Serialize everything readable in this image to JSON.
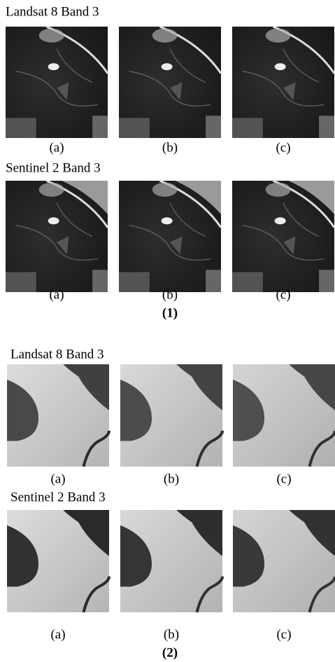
{
  "figure": {
    "sections": [
      {
        "label": "(1)",
        "groups": [
          {
            "title": "Landsat 8 Band 3",
            "captions": [
              "(a)",
              "(b)",
              "(c)"
            ]
          },
          {
            "title": "Sentinel 2 Band 3",
            "captions": [
              "(a)",
              "(b)",
              "(c)"
            ]
          }
        ]
      },
      {
        "label": "(2)",
        "groups": [
          {
            "title": "Landsat 8 Band 3",
            "captions": [
              "(a)",
              "(b)",
              "(c)"
            ]
          },
          {
            "title": "Sentinel 2 Band 3",
            "captions": [
              "(a)",
              "(b)",
              "(c)"
            ]
          }
        ]
      }
    ]
  }
}
